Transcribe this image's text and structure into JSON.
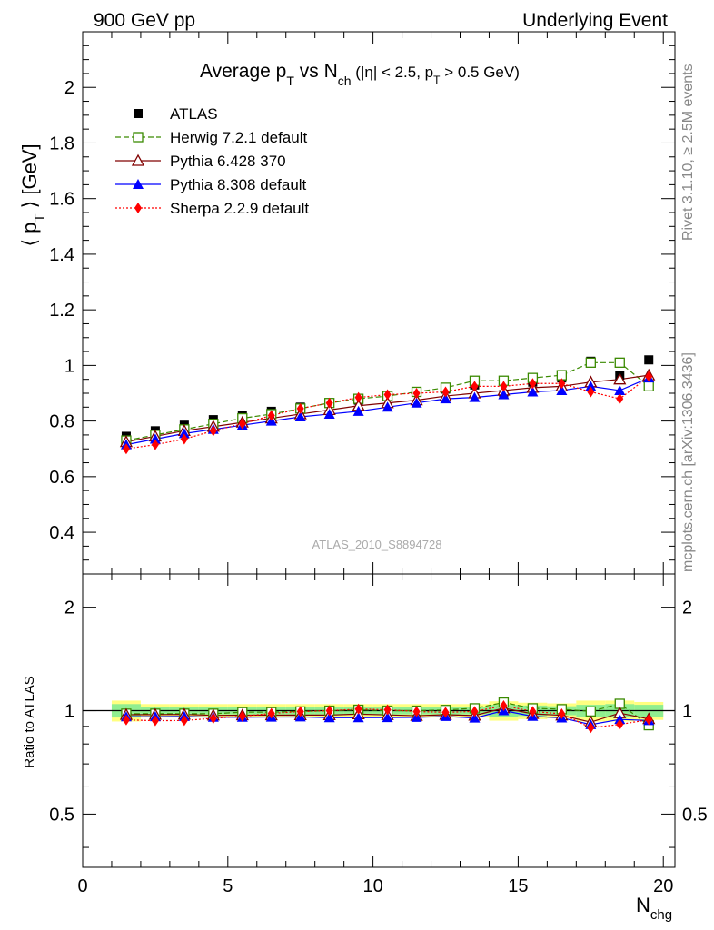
{
  "header": {
    "left": "900 GeV pp",
    "right": "Underlying Event"
  },
  "side_labels": {
    "rivet": "Rivet 3.1.10, ≥ 2.5M events",
    "mcplots": "mcplots.cern.ch [arXiv:1306.3436]"
  },
  "chart_data": [
    {
      "type": "scatter",
      "title": "Average pT vs Nch (|η| < 2.5, pT > 0.5 GeV)",
      "ylabel": "⟨ pT ⟩ [GeV]",
      "watermark": "ATLAS_2010_S8894728",
      "xlim": [
        0,
        20.4
      ],
      "ylim": [
        0.25,
        2.2
      ],
      "yticks": [
        "0.4",
        "0.6",
        "0.8",
        "1",
        "1.2",
        "1.4",
        "1.6",
        "1.8",
        "2"
      ],
      "legend_position": "top-left",
      "x": [
        1.5,
        2.5,
        3.5,
        4.5,
        5.5,
        6.5,
        7.5,
        8.5,
        9.5,
        10.5,
        11.5,
        12.5,
        13.5,
        14.5,
        15.5,
        16.5,
        17.5,
        18.5,
        19.5
      ],
      "series": [
        {
          "name": "ATLAS",
          "color": "#000000",
          "marker": "square-filled",
          "line": "none",
          "values": [
            0.745,
            0.765,
            0.785,
            0.805,
            0.82,
            0.835,
            0.85,
            0.865,
            0.875,
            0.89,
            0.905,
            0.915,
            0.93,
            0.895,
            0.94,
            0.955,
            1.015,
            0.965,
            1.02
          ]
        },
        {
          "name": "Herwig 7.2.1 default",
          "color": "#3a8a00",
          "marker": "square-open",
          "line": "dashed",
          "values": [
            0.73,
            0.75,
            0.77,
            0.79,
            0.81,
            0.825,
            0.845,
            0.865,
            0.88,
            0.89,
            0.905,
            0.92,
            0.945,
            0.945,
            0.955,
            0.965,
            1.01,
            1.01,
            0.925
          ]
        },
        {
          "name": "Pythia 6.428 370",
          "color": "#800000",
          "marker": "triangle-open",
          "line": "solid",
          "values": [
            0.725,
            0.745,
            0.765,
            0.78,
            0.795,
            0.81,
            0.825,
            0.84,
            0.855,
            0.865,
            0.875,
            0.89,
            0.9,
            0.91,
            0.92,
            0.925,
            0.94,
            0.95,
            0.965
          ]
        },
        {
          "name": "Pythia 8.308 default",
          "color": "#0000ff",
          "marker": "triangle-filled",
          "line": "solid",
          "values": [
            0.715,
            0.735,
            0.755,
            0.77,
            0.785,
            0.8,
            0.815,
            0.825,
            0.835,
            0.85,
            0.865,
            0.88,
            0.885,
            0.895,
            0.905,
            0.91,
            0.925,
            0.91,
            0.955
          ]
        },
        {
          "name": "Sherpa 2.2.9 default",
          "color": "#ff0000",
          "marker": "diamond-filled",
          "line": "dotted",
          "values": [
            0.7,
            0.715,
            0.735,
            0.765,
            0.79,
            0.82,
            0.845,
            0.865,
            0.885,
            0.895,
            0.9,
            0.905,
            0.925,
            0.925,
            0.935,
            0.935,
            0.905,
            0.88,
            0.96
          ]
        }
      ]
    },
    {
      "type": "scatter",
      "ylabel": "Ratio to ATLAS",
      "xlabel": "Nchg",
      "xlim": [
        0,
        20.4
      ],
      "ylim": [
        0.35,
        2.5
      ],
      "scale": "log",
      "yticks": [
        "0.5",
        "1",
        "2"
      ],
      "xticks": [
        "0",
        "5",
        "10",
        "15",
        "20"
      ],
      "band_yellow_halfwidth": [
        0.07,
        0.045,
        0.045,
        0.045,
        0.045,
        0.045,
        0.045,
        0.045,
        0.045,
        0.045,
        0.045,
        0.045,
        0.045,
        0.065,
        0.055,
        0.05,
        0.07,
        0.07,
        0.06
      ],
      "band_green_halfwidth": [
        0.045,
        0.025,
        0.025,
        0.025,
        0.025,
        0.025,
        0.025,
        0.025,
        0.025,
        0.025,
        0.025,
        0.025,
        0.025,
        0.04,
        0.035,
        0.03,
        0.04,
        0.045,
        0.04
      ],
      "x": [
        1.5,
        2.5,
        3.5,
        4.5,
        5.5,
        6.5,
        7.5,
        8.5,
        9.5,
        10.5,
        11.5,
        12.5,
        13.5,
        14.5,
        15.5,
        16.5,
        17.5,
        18.5,
        19.5
      ],
      "series": [
        {
          "name": "Herwig 7.2.1 default",
          "values": [
            0.98,
            0.98,
            0.98,
            0.98,
            0.99,
            0.99,
            0.995,
            1.0,
            1.006,
            1.0,
            1.0,
            1.005,
            1.016,
            1.056,
            1.016,
            1.01,
            0.995,
            1.047,
            0.907
          ]
        },
        {
          "name": "Pythia 6.428 370",
          "values": [
            0.973,
            0.974,
            0.975,
            0.969,
            0.97,
            0.97,
            0.971,
            0.971,
            0.977,
            0.972,
            0.967,
            0.973,
            0.968,
            1.017,
            0.979,
            0.969,
            0.926,
            0.984,
            0.946
          ]
        },
        {
          "name": "Pythia 8.308 default",
          "values": [
            0.96,
            0.961,
            0.962,
            0.957,
            0.957,
            0.958,
            0.959,
            0.954,
            0.954,
            0.955,
            0.956,
            0.962,
            0.952,
            1.0,
            0.963,
            0.953,
            0.911,
            0.943,
            0.936
          ]
        },
        {
          "name": "Sherpa 2.2.9 default",
          "values": [
            0.94,
            0.935,
            0.936,
            0.95,
            0.963,
            0.982,
            0.994,
            1.0,
            1.011,
            1.006,
            0.994,
            0.989,
            0.995,
            1.034,
            0.995,
            0.979,
            0.892,
            0.912,
            0.941
          ]
        }
      ]
    }
  ]
}
